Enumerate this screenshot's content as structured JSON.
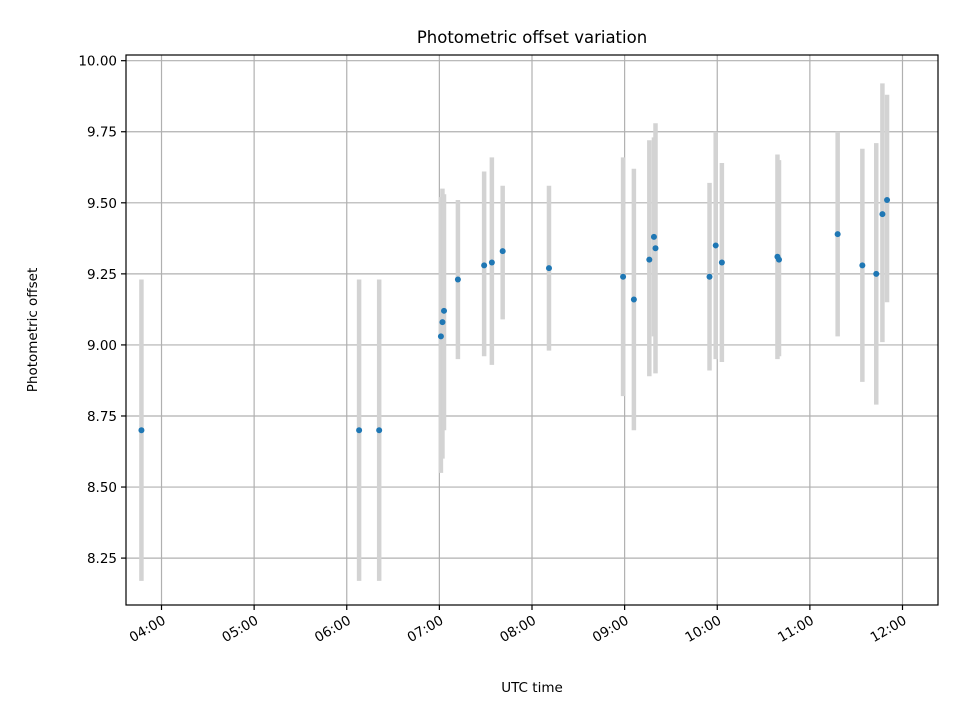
{
  "chart_data": {
    "type": "scatter",
    "title": "Photometric offset variation",
    "xlabel": "UTC time",
    "ylabel": "Photometric offset",
    "xlim": [
      "03:37",
      "12:23"
    ],
    "ylim": [
      8.085,
      10.02
    ],
    "x_ticks": [
      "04:00",
      "05:00",
      "06:00",
      "07:00",
      "08:00",
      "09:00",
      "10:00",
      "11:00",
      "12:00"
    ],
    "y_ticks": [
      "8.25",
      "8.50",
      "8.75",
      "9.00",
      "9.25",
      "9.50",
      "9.75",
      "10.00"
    ],
    "grid": true,
    "legend": "none",
    "colors": {
      "points": "#1f77b4",
      "error_bars": "#d3d3d3",
      "grid": "#b0b0b0"
    },
    "series": [
      {
        "points": [
          {
            "t": "03:47",
            "y": 8.7,
            "lo": 8.17,
            "hi": 9.23
          },
          {
            "t": "06:08",
            "y": 8.7,
            "lo": 8.17,
            "hi": 9.23
          },
          {
            "t": "06:21",
            "y": 8.7,
            "lo": 8.17,
            "hi": 9.23
          },
          {
            "t": "07:01",
            "y": 9.03,
            "lo": 8.55,
            "hi": 9.52
          },
          {
            "t": "07:02",
            "y": 9.08,
            "lo": 8.6,
            "hi": 9.55
          },
          {
            "t": "07:03",
            "y": 9.12,
            "lo": 8.7,
            "hi": 9.53
          },
          {
            "t": "07:12",
            "y": 9.23,
            "lo": 8.95,
            "hi": 9.51
          },
          {
            "t": "07:29",
            "y": 9.28,
            "lo": 8.96,
            "hi": 9.61
          },
          {
            "t": "07:34",
            "y": 9.29,
            "lo": 8.93,
            "hi": 9.66
          },
          {
            "t": "07:41",
            "y": 9.33,
            "lo": 9.09,
            "hi": 9.56
          },
          {
            "t": "08:11",
            "y": 9.27,
            "lo": 8.98,
            "hi": 9.56
          },
          {
            "t": "08:59",
            "y": 9.24,
            "lo": 8.82,
            "hi": 9.66
          },
          {
            "t": "09:06",
            "y": 9.16,
            "lo": 8.7,
            "hi": 9.62
          },
          {
            "t": "09:16",
            "y": 9.3,
            "lo": 8.89,
            "hi": 9.72
          },
          {
            "t": "09:19",
            "y": 9.38,
            "lo": 9.03,
            "hi": 9.73
          },
          {
            "t": "09:20",
            "y": 9.34,
            "lo": 8.9,
            "hi": 9.78
          },
          {
            "t": "09:55",
            "y": 9.24,
            "lo": 8.91,
            "hi": 9.57
          },
          {
            "t": "09:59",
            "y": 9.35,
            "lo": 8.95,
            "hi": 9.75
          },
          {
            "t": "10:03",
            "y": 9.29,
            "lo": 8.94,
            "hi": 9.64
          },
          {
            "t": "10:39",
            "y": 9.31,
            "lo": 8.95,
            "hi": 9.67
          },
          {
            "t": "10:40",
            "y": 9.3,
            "lo": 8.96,
            "hi": 9.65
          },
          {
            "t": "11:18",
            "y": 9.39,
            "lo": 9.03,
            "hi": 9.75
          },
          {
            "t": "11:34",
            "y": 9.28,
            "lo": 8.87,
            "hi": 9.69
          },
          {
            "t": "11:43",
            "y": 9.25,
            "lo": 8.79,
            "hi": 9.71
          },
          {
            "t": "11:47",
            "y": 9.46,
            "lo": 9.01,
            "hi": 9.92
          },
          {
            "t": "11:50",
            "y": 9.51,
            "lo": 9.15,
            "hi": 9.88
          }
        ]
      }
    ]
  }
}
